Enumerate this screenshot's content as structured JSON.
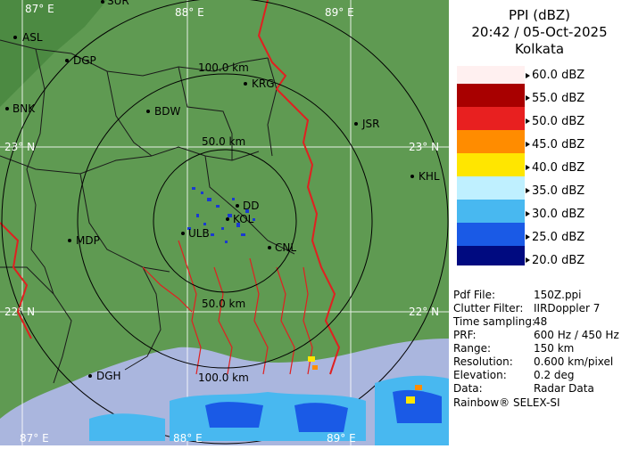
{
  "product": {
    "title": "PPI (dBZ)",
    "datetime": "20:42 / 05-Oct-2025",
    "station": "Kolkata"
  },
  "color_scale": [
    {
      "label": "60.0 dBZ",
      "color": "#fbe5e5"
    },
    {
      "label": "55.0 dBZ",
      "color": "#a80000"
    },
    {
      "label": "50.0 dBZ",
      "color": "#e82020"
    },
    {
      "label": "45.0 dBZ",
      "color": "#ff8c00"
    },
    {
      "label": "40.0 dBZ",
      "color": "#ffe600"
    },
    {
      "label": "35.0 dBZ",
      "color": "#bff0ff"
    },
    {
      "label": "30.0 dBZ",
      "color": "#48b8f0"
    },
    {
      "label": "25.0 dBZ",
      "color": "#1a5ae6"
    },
    {
      "label": "20.0 dBZ",
      "color": "#0c28b0"
    }
  ],
  "scale_extremes": {
    "top_color": "#fff0f0",
    "bottom_color": "#000a80"
  },
  "info": [
    {
      "key": "Pdf File:",
      "value": "150Z.ppi"
    },
    {
      "key": "Clutter Filter:",
      "value": "IIRDoppler 7"
    },
    {
      "key": "Time sampling:",
      "value": "48"
    },
    {
      "key": "PRF:",
      "value": "600 Hz / 450 Hz"
    },
    {
      "key": "Range:",
      "value": "150 km"
    },
    {
      "key": "Resolution:",
      "value": "0.600 km/pixel"
    },
    {
      "key": "Elevation:",
      "value": "0.2 deg"
    },
    {
      "key": "Data:",
      "value": "Radar Data"
    }
  ],
  "footer": "Rainbow® SELEX-SI",
  "map": {
    "land_color": "#5f9a52",
    "sea_color": "#aab6de",
    "grid_color": "#ffffff",
    "ring_labels": [
      "50.0 km",
      "100.0 km",
      "50.0 km",
      "100.0 km"
    ],
    "graticule_labels": [
      "87° E",
      "88° E",
      "89° E",
      "23° N",
      "23° N",
      "22° N",
      "22° N",
      "87° E",
      "88° E",
      "89° E"
    ],
    "cities": [
      "SUR",
      "ASL",
      "DGP",
      "KRG",
      "BNK",
      "BDW",
      "JSR",
      "KHL",
      "MDP",
      "DD",
      "KOL",
      "ULB",
      "CNL",
      "DGH"
    ]
  }
}
